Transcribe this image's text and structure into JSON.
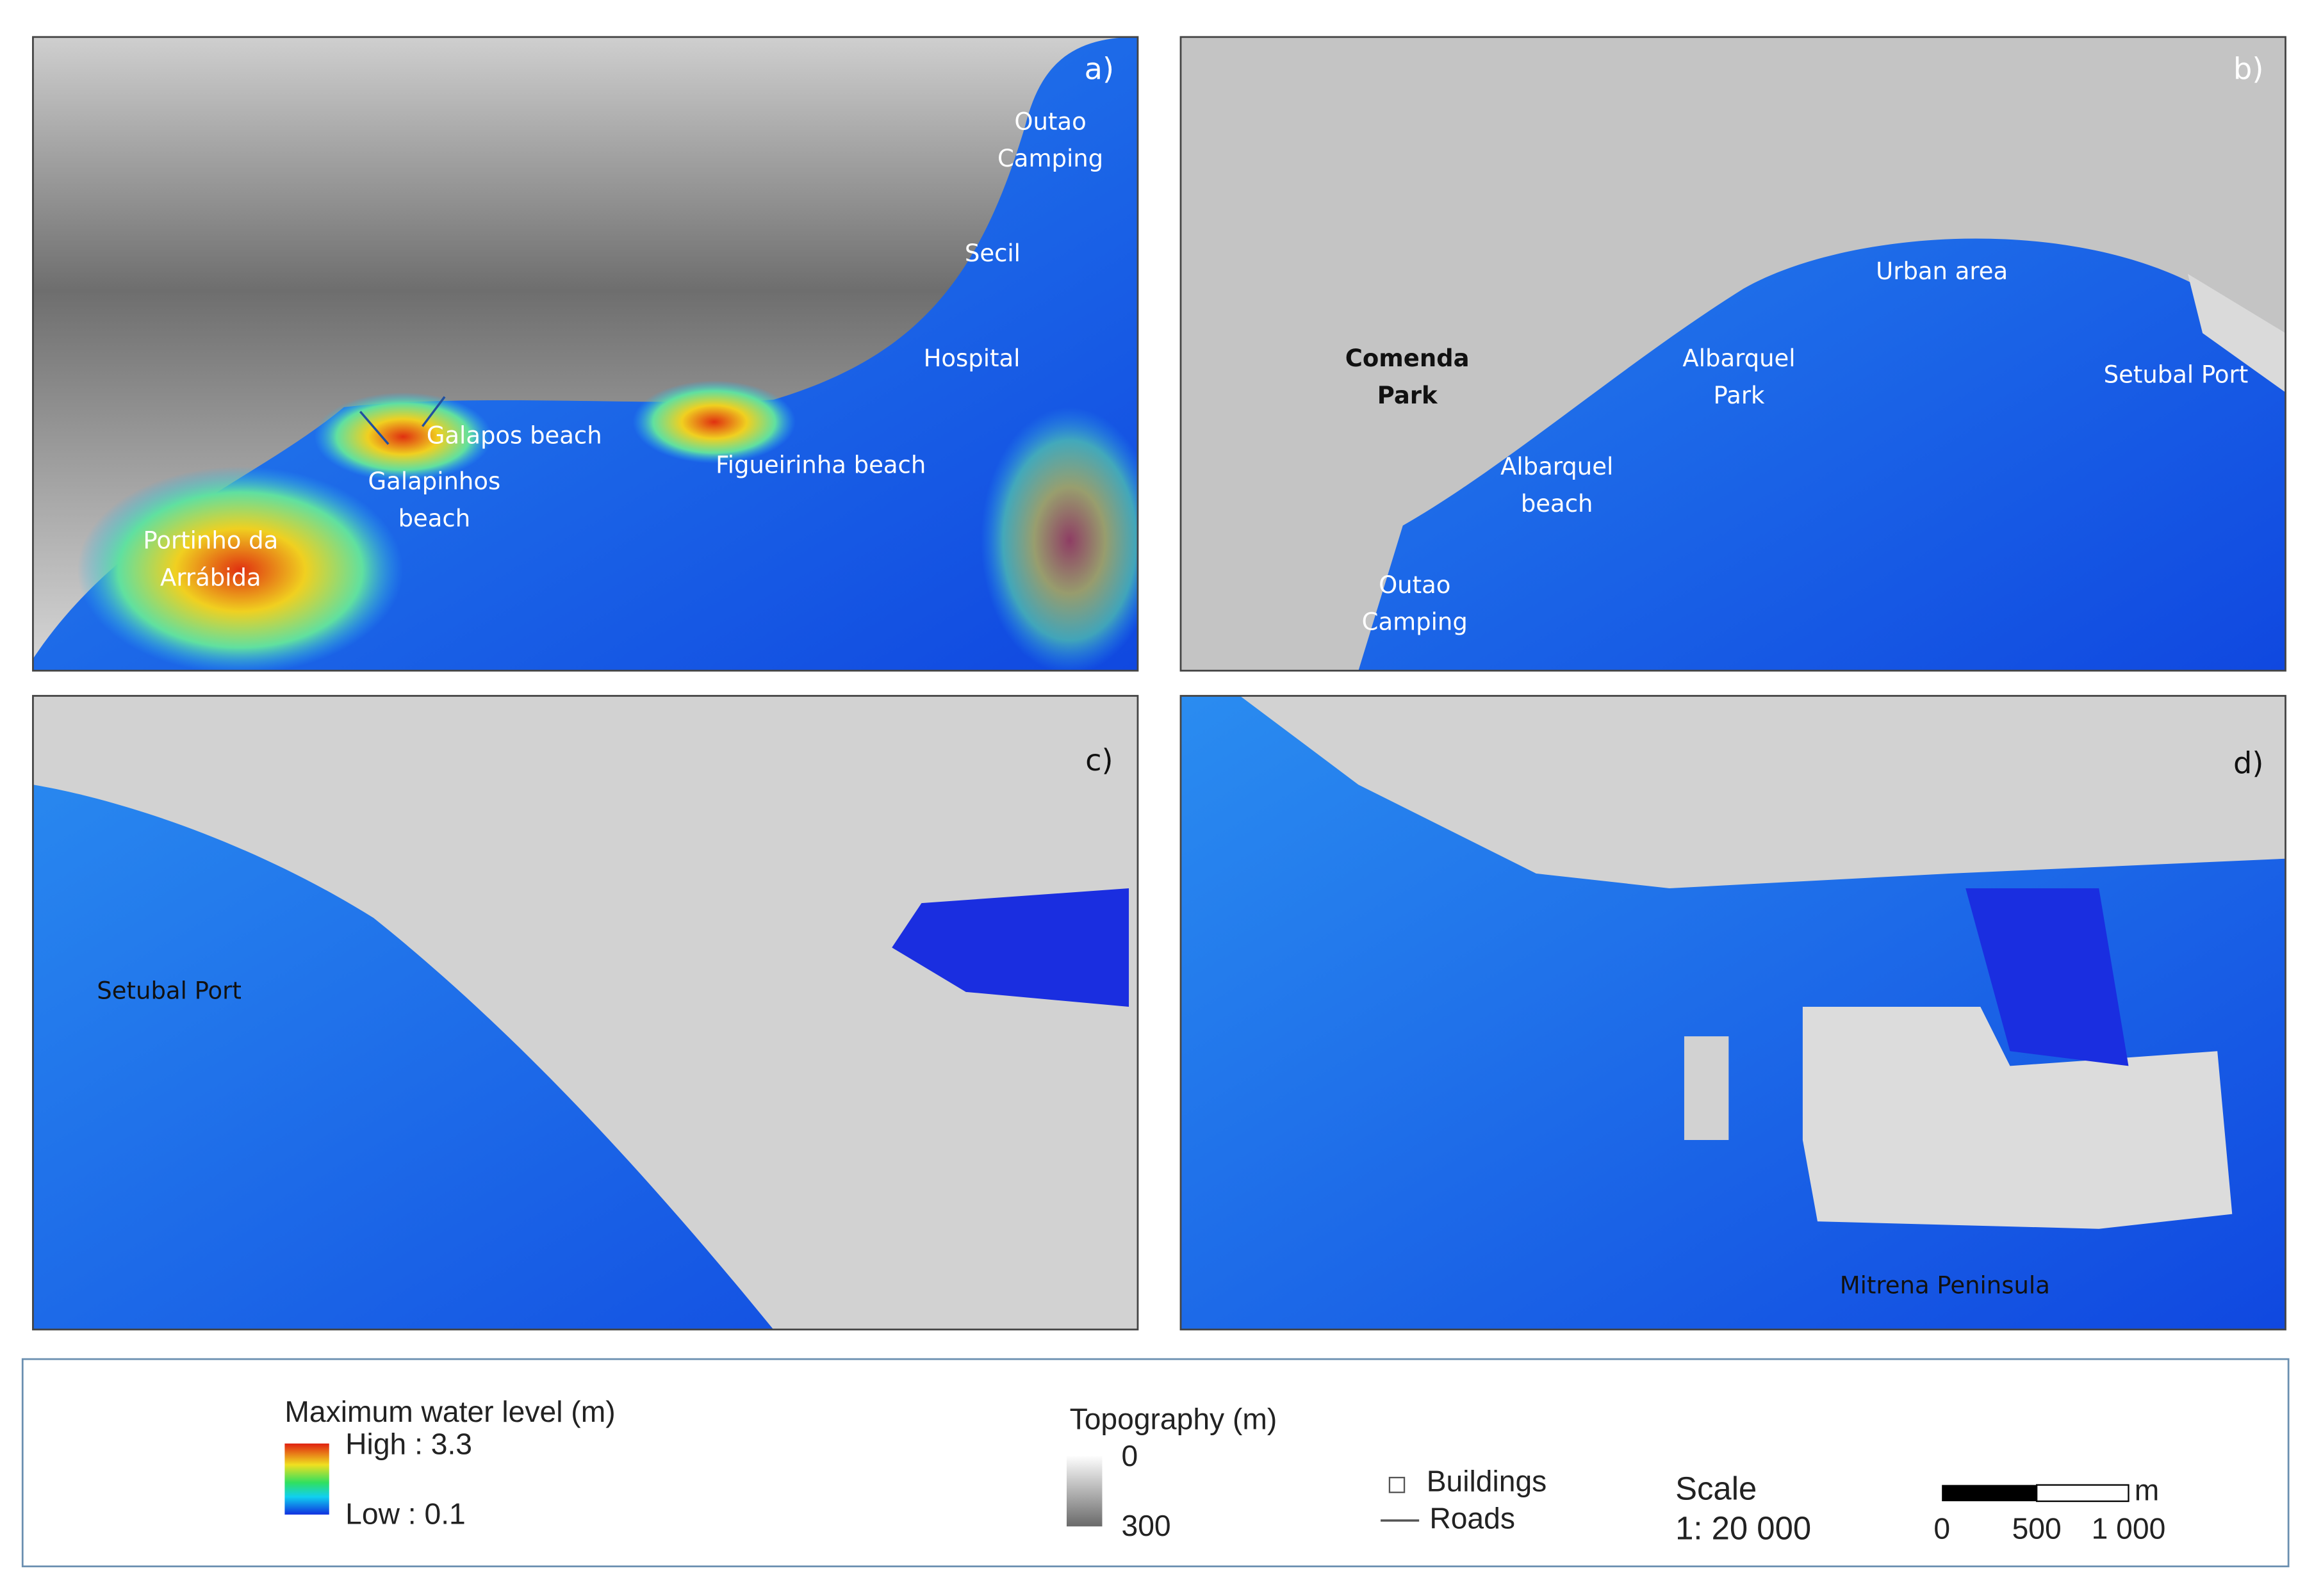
{
  "panels": [
    {
      "label": "a)",
      "places": [
        {
          "lines": [
            "Outao",
            "Camping"
          ]
        },
        {
          "lines": [
            "Secil"
          ]
        },
        {
          "lines": [
            "Hospital"
          ]
        },
        {
          "lines": [
            "Galapos beach"
          ]
        },
        {
          "lines": [
            "Galapinhos",
            "beach"
          ]
        },
        {
          "lines": [
            "Portinho da",
            "Arrábida"
          ]
        },
        {
          "lines": [
            "Figueirinha beach"
          ]
        }
      ]
    },
    {
      "label": "b)",
      "places": [
        {
          "lines": [
            "Urban area"
          ]
        },
        {
          "lines": [
            "Comenda",
            "Park"
          ]
        },
        {
          "lines": [
            "Albarquel",
            "Park"
          ]
        },
        {
          "lines": [
            "Setubal Port"
          ]
        },
        {
          "lines": [
            "Albarquel",
            "beach"
          ]
        },
        {
          "lines": [
            "Outao",
            "Camping"
          ]
        }
      ]
    },
    {
      "label": "c)",
      "places": [
        {
          "lines": [
            "Setubal Port"
          ]
        }
      ]
    },
    {
      "label": "d)",
      "places": [
        {
          "lines": [
            "Mitrena Peninsula"
          ]
        }
      ]
    }
  ],
  "legend": {
    "water_level": {
      "title": "Maximum water level (m)",
      "high": "High : 3.3",
      "low": "Low : 0.1"
    },
    "topography": {
      "title": "Topography (m)",
      "top": "0",
      "bottom": "300"
    },
    "buildings": "Buildings",
    "roads": "Roads",
    "scale": {
      "title": "Scale",
      "ratio": "1: 20 000"
    },
    "scale_bar": {
      "unit": "m",
      "ticks": [
        "0",
        "500",
        "1 000"
      ]
    }
  }
}
